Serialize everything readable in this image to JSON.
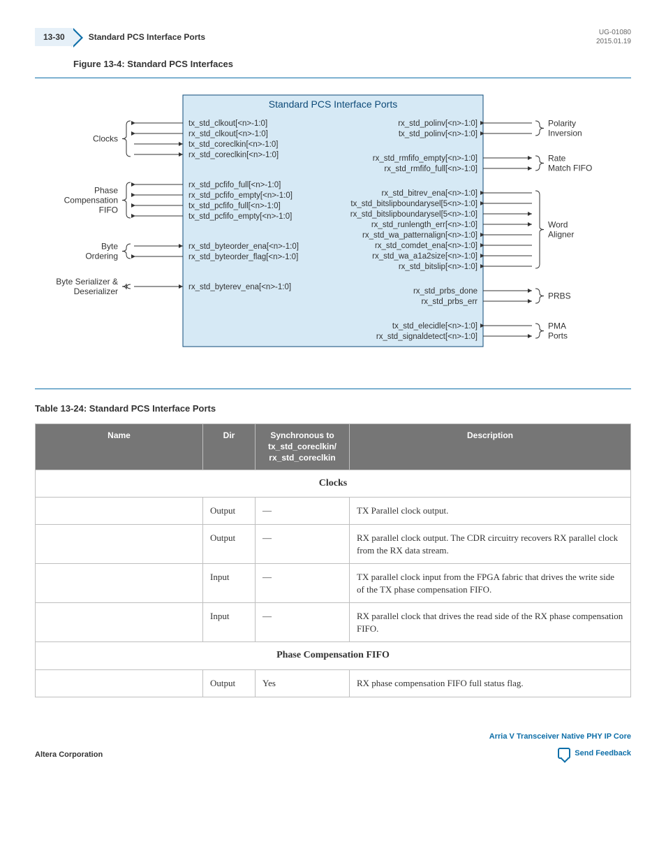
{
  "header": {
    "page_num": "13-30",
    "section": "Standard PCS Interface Ports",
    "doc_id": "UG-01080",
    "date": "2015.01.19"
  },
  "figure": {
    "title": "Figure 13-4: Standard PCS Interfaces",
    "box_title": "Standard PCS Interface Ports",
    "box_bg": "#d6e9f5",
    "box_stroke": "#0d4a78",
    "line_color": "#333333",
    "left_groups": [
      {
        "label": "Clocks",
        "signals": [
          "tx_std_clkout[<n>-1:0]",
          "rx_std_clkout[<n>-1:0]",
          "tx_std_coreclkin[<n>-1:0]",
          "rx_std_coreclkin[<n>-1:0]"
        ],
        "dirs": [
          "out",
          "out",
          "in",
          "in"
        ]
      },
      {
        "label": "Phase\nCompensation\nFIFO",
        "signals": [
          "rx_std_pcfifo_full[<n>-1:0]",
          "rx_std_pcfifo_empty[<n>-1:0]",
          "tx_std_pcfifo_full[<n>-1:0]",
          "tx_std_pcfifo_empty[<n>-1:0]"
        ],
        "dirs": [
          "out",
          "out",
          "out",
          "out"
        ]
      },
      {
        "label": "Byte\nOrdering",
        "signals": [
          "rx_std_byteorder_ena[<n>-1:0]",
          "rx_std_byteorder_flag[<n>-1:0]"
        ],
        "dirs": [
          "in",
          "out"
        ]
      },
      {
        "label": "Byte Serializer &\nDeserializer",
        "signals": [
          "rx_std_byterev_ena[<n>-1:0]"
        ],
        "dirs": [
          "in"
        ]
      }
    ],
    "right_groups": [
      {
        "label": "Polarity\nInversion",
        "signals": [
          "rx_std_polinv[<n>-1:0]",
          "tx_std_polinv[<n>-1:0]"
        ],
        "dirs": [
          "in",
          "in"
        ]
      },
      {
        "label": "Rate\nMatch FIFO",
        "signals": [
          "rx_std_rmfifo_empty[<n>-1:0]",
          "rx_std_rmfifo_full[<n>-1:0]"
        ],
        "dirs": [
          "out",
          "out"
        ]
      },
      {
        "label": "Word\nAligner",
        "signals": [
          "rx_std_bitrev_ena[<n>-1:0]",
          "tx_std_bitslipboundarysel[5<n>-1:0]",
          "rx_std_bitslipboundarysel[5<n>-1:0]",
          "rx_std_runlength_err[<n>-1:0]",
          "rx_std_wa_patternalign[<n>-1:0]",
          "rx_std_comdet_ena[<n>-1:0]",
          "rx_std_wa_a1a2size[<n>-1:0]",
          "rx_std_bitslip[<n>-1:0]"
        ],
        "dirs": [
          "in",
          "in",
          "out",
          "out",
          "in",
          "in",
          "in",
          "in"
        ]
      },
      {
        "label": "PRBS",
        "signals": [
          "rx_std_prbs_done",
          "rx_std_prbs_err"
        ],
        "dirs": [
          "out",
          "out"
        ]
      },
      {
        "label": "PMA\nPorts",
        "signals": [
          "tx_std_elecidle[<n>-1:0]",
          "rx_std_signaldetect[<n>-1:0]"
        ],
        "dirs": [
          "in",
          "out"
        ]
      }
    ]
  },
  "table": {
    "title": "Table 13-24: Standard PCS Interface Ports",
    "header_bg": "#767676",
    "header_fg": "#ffffff",
    "border_color": "#bfbfbf",
    "columns": [
      "Name",
      "Dir",
      "Synchronous to\ntx_std_coreclkin/\nrx_std_coreclkin",
      "Description"
    ],
    "sections": [
      {
        "title": "Clocks",
        "rows": [
          {
            "name": "",
            "dir": "Output",
            "sync": "—",
            "desc": "TX Parallel clock output."
          },
          {
            "name": "",
            "dir": "Output",
            "sync": "—",
            "desc": "RX parallel clock output. The CDR circuitry recovers RX parallel clock from the RX data stream."
          },
          {
            "name": "",
            "dir": "Input",
            "sync": "—",
            "desc": "TX parallel clock input from the FPGA fabric that drives the write side of the TX phase compensation FIFO."
          },
          {
            "name": "",
            "dir": "Input",
            "sync": "—",
            "desc": "RX parallel clock that drives the read side of the RX phase compensation FIFO."
          }
        ]
      },
      {
        "title": "Phase Compensation FIFO",
        "rows": [
          {
            "name": "",
            "dir": "Output",
            "sync": "Yes",
            "desc": "RX phase compensation FIFO full status flag."
          }
        ]
      }
    ]
  },
  "footer": {
    "left": "Altera Corporation",
    "right_link": "Arria V Transceiver Native PHY IP Core",
    "send": "Send Feedback"
  }
}
